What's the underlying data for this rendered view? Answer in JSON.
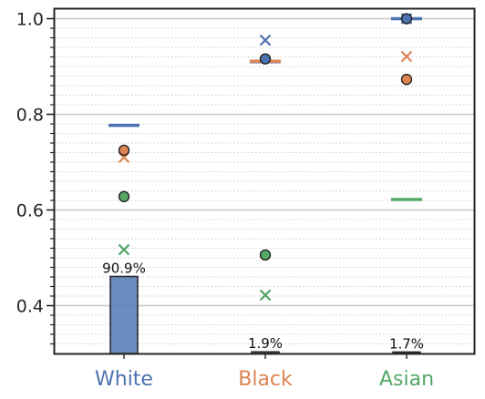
{
  "chart_data": {
    "type": "scatter",
    "categories": [
      "White",
      "Black",
      "Asian"
    ],
    "category_colors": [
      "#4c72b0",
      "#dd8452",
      "#55a868"
    ],
    "ylim": [
      0.3,
      1.02
    ],
    "yticks_major": [
      0.4,
      0.6,
      0.8,
      1.0
    ],
    "ytick_labels": [
      "0.4",
      "0.6",
      "0.8",
      "1.0"
    ],
    "yticks_minor": [
      0.32,
      0.34,
      0.36,
      0.38,
      0.42,
      0.44,
      0.46,
      0.48,
      0.5,
      0.52,
      0.54,
      0.56,
      0.58,
      0.62,
      0.64,
      0.66,
      0.68,
      0.7,
      0.72,
      0.74,
      0.76,
      0.78,
      0.82,
      0.84,
      0.86,
      0.88,
      0.9,
      0.92,
      0.94,
      0.96,
      0.98
    ],
    "grid": true,
    "series": [
      {
        "marker": "dash",
        "color": "#4c72b0",
        "values": [
          0.777,
          0.91,
          1.0
        ]
      },
      {
        "marker": "x",
        "color": "#4c72b0",
        "values": [
          null,
          0.955,
          1.0
        ]
      },
      {
        "marker": "circle",
        "color": "#4c72b0",
        "values": [
          null,
          0.916,
          1.0
        ]
      },
      {
        "marker": "dash",
        "color": "#dd8452",
        "values": [
          null,
          0.911,
          null
        ]
      },
      {
        "marker": "x",
        "color": "#dd8452",
        "values": [
          0.71,
          null,
          0.921
        ]
      },
      {
        "marker": "circle",
        "color": "#dd8452",
        "values": [
          0.725,
          null,
          0.873
        ]
      },
      {
        "marker": "dash",
        "color": "#55a868",
        "values": [
          null,
          null,
          0.622
        ]
      },
      {
        "marker": "x",
        "color": "#55a868",
        "values": [
          0.517,
          0.422,
          null
        ]
      },
      {
        "marker": "circle",
        "color": "#55a868",
        "values": [
          0.628,
          0.506,
          null
        ]
      }
    ],
    "share_bars": {
      "color": "#4c72b0",
      "fractions": [
        0.909,
        0.019,
        0.017
      ],
      "labels": [
        "90.9%",
        "1.9%",
        "1.7%"
      ]
    }
  }
}
